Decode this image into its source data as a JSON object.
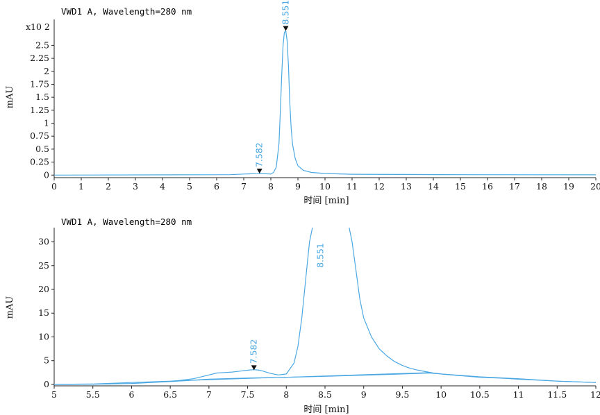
{
  "colors": {
    "trace": "#4ba8e3",
    "axis": "#222222",
    "text": "#111111",
    "title": "#2d8fd5",
    "marker": "#111111"
  },
  "chart_data": [
    {
      "type": "line",
      "title": "VWD1 A, Wavelength=280 nm",
      "xlabel": "时间 [min]",
      "ylabel": "mAU",
      "y_multiplier": "x10 2",
      "xlim": [
        0,
        20
      ],
      "ylim": [
        -0.05,
        3.0
      ],
      "x_ticks": [
        "0",
        "1",
        "2",
        "3",
        "4",
        "5",
        "6",
        "7",
        "8",
        "9",
        "10",
        "11",
        "12",
        "13",
        "14",
        "15",
        "16",
        "17",
        "18",
        "19",
        "20"
      ],
      "y_ticks": [
        "0",
        "0.25",
        "0.5",
        "0.75",
        "1",
        "1.25",
        "1.5",
        "1.75",
        "2",
        "2.25",
        "2.5"
      ],
      "peaks": [
        {
          "label": "7.582",
          "x": 7.582,
          "y": 0.03
        },
        {
          "label": "8.551",
          "x": 8.551,
          "y": 2.78
        }
      ],
      "series": [
        {
          "x": [
            0,
            6.5,
            7.0,
            7.2,
            7.5,
            7.6,
            7.8,
            8.0,
            8.1,
            8.2,
            8.3,
            8.35,
            8.4,
            8.45,
            8.5,
            8.55,
            8.6,
            8.65,
            8.7,
            8.75,
            8.8,
            8.9,
            9.0,
            9.2,
            9.5,
            10.0,
            11.0,
            15.0,
            20.0
          ],
          "y": [
            0,
            0.008,
            0.02,
            0.024,
            0.028,
            0.03,
            0.025,
            0.02,
            0.05,
            0.15,
            0.6,
            1.2,
            1.9,
            2.5,
            2.75,
            2.78,
            2.6,
            2.1,
            1.4,
            0.9,
            0.6,
            0.32,
            0.18,
            0.09,
            0.05,
            0.03,
            0.015,
            0.008,
            0.005
          ]
        }
      ]
    },
    {
      "type": "line",
      "title": "VWD1 A, Wavelength=280 nm",
      "xlabel": "时间 [min]",
      "ylabel": "mAU",
      "xlim": [
        5,
        12
      ],
      "ylim": [
        -0.3,
        33
      ],
      "x_ticks": [
        "5",
        "5.5",
        "6",
        "6.5",
        "7",
        "7.5",
        "8",
        "8.5",
        "9",
        "9.5",
        "10",
        "10.5",
        "11",
        "11.5",
        "12"
      ],
      "y_ticks": [
        "0",
        "5",
        "10",
        "15",
        "20",
        "25",
        "30"
      ],
      "peaks": [
        {
          "label": "7.582",
          "x": 7.582,
          "y": 3.0
        },
        {
          "label": "8.551",
          "x": 8.551,
          "y": 278
        }
      ],
      "baseline": {
        "x": [
          6.65,
          9.85
        ],
        "y": [
          0.8,
          2.5
        ]
      },
      "series": [
        {
          "x": [
            5.0,
            5.5,
            6.0,
            6.5,
            6.6,
            6.8,
            7.0,
            7.1,
            7.2,
            7.3,
            7.4,
            7.5,
            7.582,
            7.65,
            7.7,
            7.8,
            7.9,
            8.0,
            8.1,
            8.15,
            8.2,
            8.25,
            8.3,
            8.35,
            8.8,
            8.85,
            8.9,
            8.95,
            9.0,
            9.1,
            9.2,
            9.3,
            9.4,
            9.5,
            9.6,
            9.7,
            9.8,
            9.9,
            10.0,
            10.2,
            10.5,
            10.8,
            11.0,
            11.5,
            12.0
          ],
          "y": [
            0,
            0.1,
            0.4,
            0.7,
            0.8,
            1.2,
            2.0,
            2.4,
            2.5,
            2.6,
            2.8,
            3.0,
            3.1,
            3.0,
            2.8,
            2.3,
            2.0,
            2.2,
            4.5,
            8.0,
            14.0,
            22.0,
            30.0,
            34.0,
            34.0,
            30.0,
            24.0,
            18.0,
            14.0,
            10.0,
            7.5,
            6.0,
            4.8,
            4.0,
            3.4,
            3.0,
            2.7,
            2.4,
            2.2,
            1.9,
            1.5,
            1.3,
            1.1,
            0.7,
            0.4
          ]
        },
        {
          "x": [
            5.0,
            5.5,
            6.0,
            6.5,
            6.7,
            7.0,
            7.5,
            8.0,
            8.5,
            9.0,
            9.5,
            9.85,
            10.0,
            10.5,
            11.0,
            11.5,
            12.0
          ],
          "y": [
            0,
            0.05,
            0.2,
            0.6,
            0.8,
            1.1,
            1.35,
            1.5,
            1.7,
            1.95,
            2.2,
            2.4,
            2.2,
            1.6,
            1.2,
            0.7,
            0.4
          ]
        }
      ]
    }
  ]
}
